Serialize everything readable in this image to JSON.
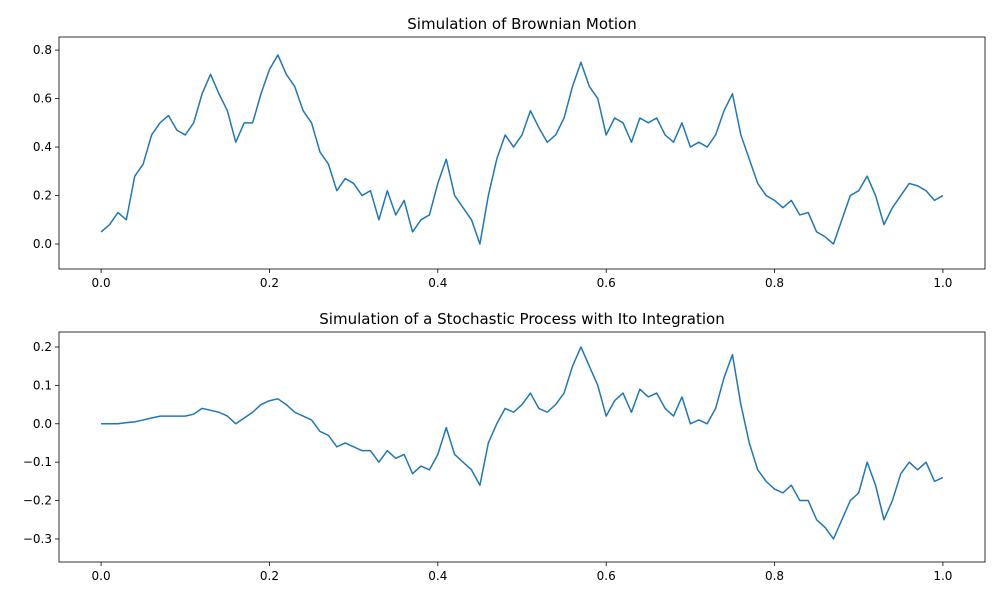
{
  "chart_data": [
    {
      "type": "line",
      "title": "Simulation of Brownian Motion",
      "color": "#1f77b4",
      "x": [
        0,
        0.01,
        0.02,
        0.03,
        0.04,
        0.05,
        0.06,
        0.07,
        0.08,
        0.09,
        0.1,
        0.11,
        0.12,
        0.13,
        0.14,
        0.15,
        0.16,
        0.17,
        0.18,
        0.19,
        0.2,
        0.21,
        0.22,
        0.23,
        0.24,
        0.25,
        0.26,
        0.27,
        0.28,
        0.29,
        0.3,
        0.31,
        0.32,
        0.33,
        0.34,
        0.35,
        0.36,
        0.37,
        0.38,
        0.39,
        0.4,
        0.41,
        0.42,
        0.43,
        0.44,
        0.45,
        0.46,
        0.47,
        0.48,
        0.49,
        0.5,
        0.51,
        0.52,
        0.53,
        0.54,
        0.55,
        0.56,
        0.57,
        0.58,
        0.59,
        0.6,
        0.61,
        0.62,
        0.63,
        0.64,
        0.65,
        0.66,
        0.67,
        0.68,
        0.69,
        0.7,
        0.71,
        0.72,
        0.73,
        0.74,
        0.75,
        0.76,
        0.77,
        0.78,
        0.79,
        0.8,
        0.81,
        0.82,
        0.83,
        0.84,
        0.85,
        0.86,
        0.87,
        0.88,
        0.89,
        0.9,
        0.91,
        0.92,
        0.93,
        0.94,
        0.95,
        0.96,
        0.97,
        0.98,
        0.99,
        1
      ],
      "values": [
        0.05,
        0.08,
        0.13,
        0.1,
        0.28,
        0.33,
        0.45,
        0.5,
        0.53,
        0.47,
        0.45,
        0.5,
        0.62,
        0.7,
        0.62,
        0.55,
        0.42,
        0.5,
        0.5,
        0.62,
        0.72,
        0.78,
        0.7,
        0.65,
        0.55,
        0.5,
        0.38,
        0.33,
        0.22,
        0.27,
        0.25,
        0.2,
        0.22,
        0.1,
        0.22,
        0.12,
        0.18,
        0.05,
        0.1,
        0.12,
        0.25,
        0.35,
        0.2,
        0.15,
        0.1,
        0.0,
        0.2,
        0.35,
        0.45,
        0.4,
        0.45,
        0.55,
        0.48,
        0.42,
        0.45,
        0.52,
        0.65,
        0.75,
        0.65,
        0.6,
        0.45,
        0.52,
        0.5,
        0.42,
        0.52,
        0.5,
        0.52,
        0.45,
        0.42,
        0.5,
        0.4,
        0.42,
        0.4,
        0.45,
        0.55,
        0.62,
        0.45,
        0.35,
        0.25,
        0.2,
        0.18,
        0.15,
        0.18,
        0.12,
        0.13,
        0.05,
        0.03,
        0.0,
        0.1,
        0.2,
        0.22,
        0.28,
        0.2,
        0.08,
        0.15,
        0.2,
        0.25,
        0.24,
        0.22,
        0.18,
        0.2
      ],
      "xlim": [
        -0.05,
        1.05
      ],
      "ylim": [
        -0.103,
        0.854
      ],
      "xticks": [
        {
          "value": 0,
          "label": "0.0"
        },
        {
          "value": 0.2,
          "label": "0.2"
        },
        {
          "value": 0.4,
          "label": "0.4"
        },
        {
          "value": 0.6,
          "label": "0.6"
        },
        {
          "value": 0.8,
          "label": "0.8"
        },
        {
          "value": 1,
          "label": "1.0"
        }
      ],
      "yticks": [
        {
          "value": 0,
          "label": "0.0"
        },
        {
          "value": 0.2,
          "label": "0.2"
        },
        {
          "value": 0.4,
          "label": "0.4"
        },
        {
          "value": 0.6,
          "label": "0.6"
        },
        {
          "value": 0.8,
          "label": "0.8"
        }
      ]
    },
    {
      "type": "line",
      "title": "Simulation of a Stochastic Process with Ito Integration",
      "color": "#1f77b4",
      "x": [
        0,
        0.01,
        0.02,
        0.03,
        0.04,
        0.05,
        0.06,
        0.07,
        0.08,
        0.09,
        0.1,
        0.11,
        0.12,
        0.13,
        0.14,
        0.15,
        0.16,
        0.17,
        0.18,
        0.19,
        0.2,
        0.21,
        0.22,
        0.23,
        0.24,
        0.25,
        0.26,
        0.27,
        0.28,
        0.29,
        0.3,
        0.31,
        0.32,
        0.33,
        0.34,
        0.35,
        0.36,
        0.37,
        0.38,
        0.39,
        0.4,
        0.41,
        0.42,
        0.43,
        0.44,
        0.45,
        0.46,
        0.47,
        0.48,
        0.49,
        0.5,
        0.51,
        0.52,
        0.53,
        0.54,
        0.55,
        0.56,
        0.57,
        0.58,
        0.59,
        0.6,
        0.61,
        0.62,
        0.63,
        0.64,
        0.65,
        0.66,
        0.67,
        0.68,
        0.69,
        0.7,
        0.71,
        0.72,
        0.73,
        0.74,
        0.75,
        0.76,
        0.77,
        0.78,
        0.79,
        0.8,
        0.81,
        0.82,
        0.83,
        0.84,
        0.85,
        0.86,
        0.87,
        0.88,
        0.89,
        0.9,
        0.91,
        0.92,
        0.93,
        0.94,
        0.95,
        0.96,
        0.97,
        0.98,
        0.99,
        1
      ],
      "values": [
        0,
        0,
        0,
        0.003,
        0.005,
        0.01,
        0.015,
        0.02,
        0.02,
        0.02,
        0.02,
        0.025,
        0.04,
        0.035,
        0.03,
        0.02,
        0.0,
        0.015,
        0.03,
        0.05,
        0.06,
        0.065,
        0.05,
        0.03,
        0.02,
        0.01,
        -0.02,
        -0.03,
        -0.06,
        -0.05,
        -0.06,
        -0.07,
        -0.07,
        -0.1,
        -0.07,
        -0.09,
        -0.08,
        -0.13,
        -0.11,
        -0.12,
        -0.08,
        -0.01,
        -0.08,
        -0.1,
        -0.12,
        -0.16,
        -0.05,
        0.0,
        0.04,
        0.03,
        0.05,
        0.08,
        0.04,
        0.03,
        0.05,
        0.08,
        0.15,
        0.2,
        0.15,
        0.1,
        0.02,
        0.06,
        0.08,
        0.03,
        0.09,
        0.07,
        0.08,
        0.04,
        0.02,
        0.07,
        0.0,
        0.01,
        0.0,
        0.04,
        0.12,
        0.18,
        0.05,
        -0.05,
        -0.12,
        -0.15,
        -0.17,
        -0.18,
        -0.16,
        -0.2,
        -0.2,
        -0.25,
        -0.27,
        -0.3,
        -0.25,
        -0.2,
        -0.18,
        -0.1,
        -0.16,
        -0.25,
        -0.2,
        -0.13,
        -0.1,
        -0.12,
        -0.1,
        -0.15,
        -0.14
      ],
      "xlim": [
        -0.05,
        1.05
      ],
      "ylim": [
        -0.36,
        0.239
      ],
      "xticks": [
        {
          "value": 0,
          "label": "0.0"
        },
        {
          "value": 0.2,
          "label": "0.2"
        },
        {
          "value": 0.4,
          "label": "0.4"
        },
        {
          "value": 0.6,
          "label": "0.6"
        },
        {
          "value": 0.8,
          "label": "0.8"
        },
        {
          "value": 1,
          "label": "1.0"
        }
      ],
      "yticks": [
        {
          "value": -0.3,
          "label": "−0.3"
        },
        {
          "value": -0.2,
          "label": "−0.2"
        },
        {
          "value": -0.1,
          "label": "−0.1"
        },
        {
          "value": 0,
          "label": "0.0"
        },
        {
          "value": 0.1,
          "label": "0.1"
        },
        {
          "value": 0.2,
          "label": "0.2"
        }
      ]
    }
  ]
}
